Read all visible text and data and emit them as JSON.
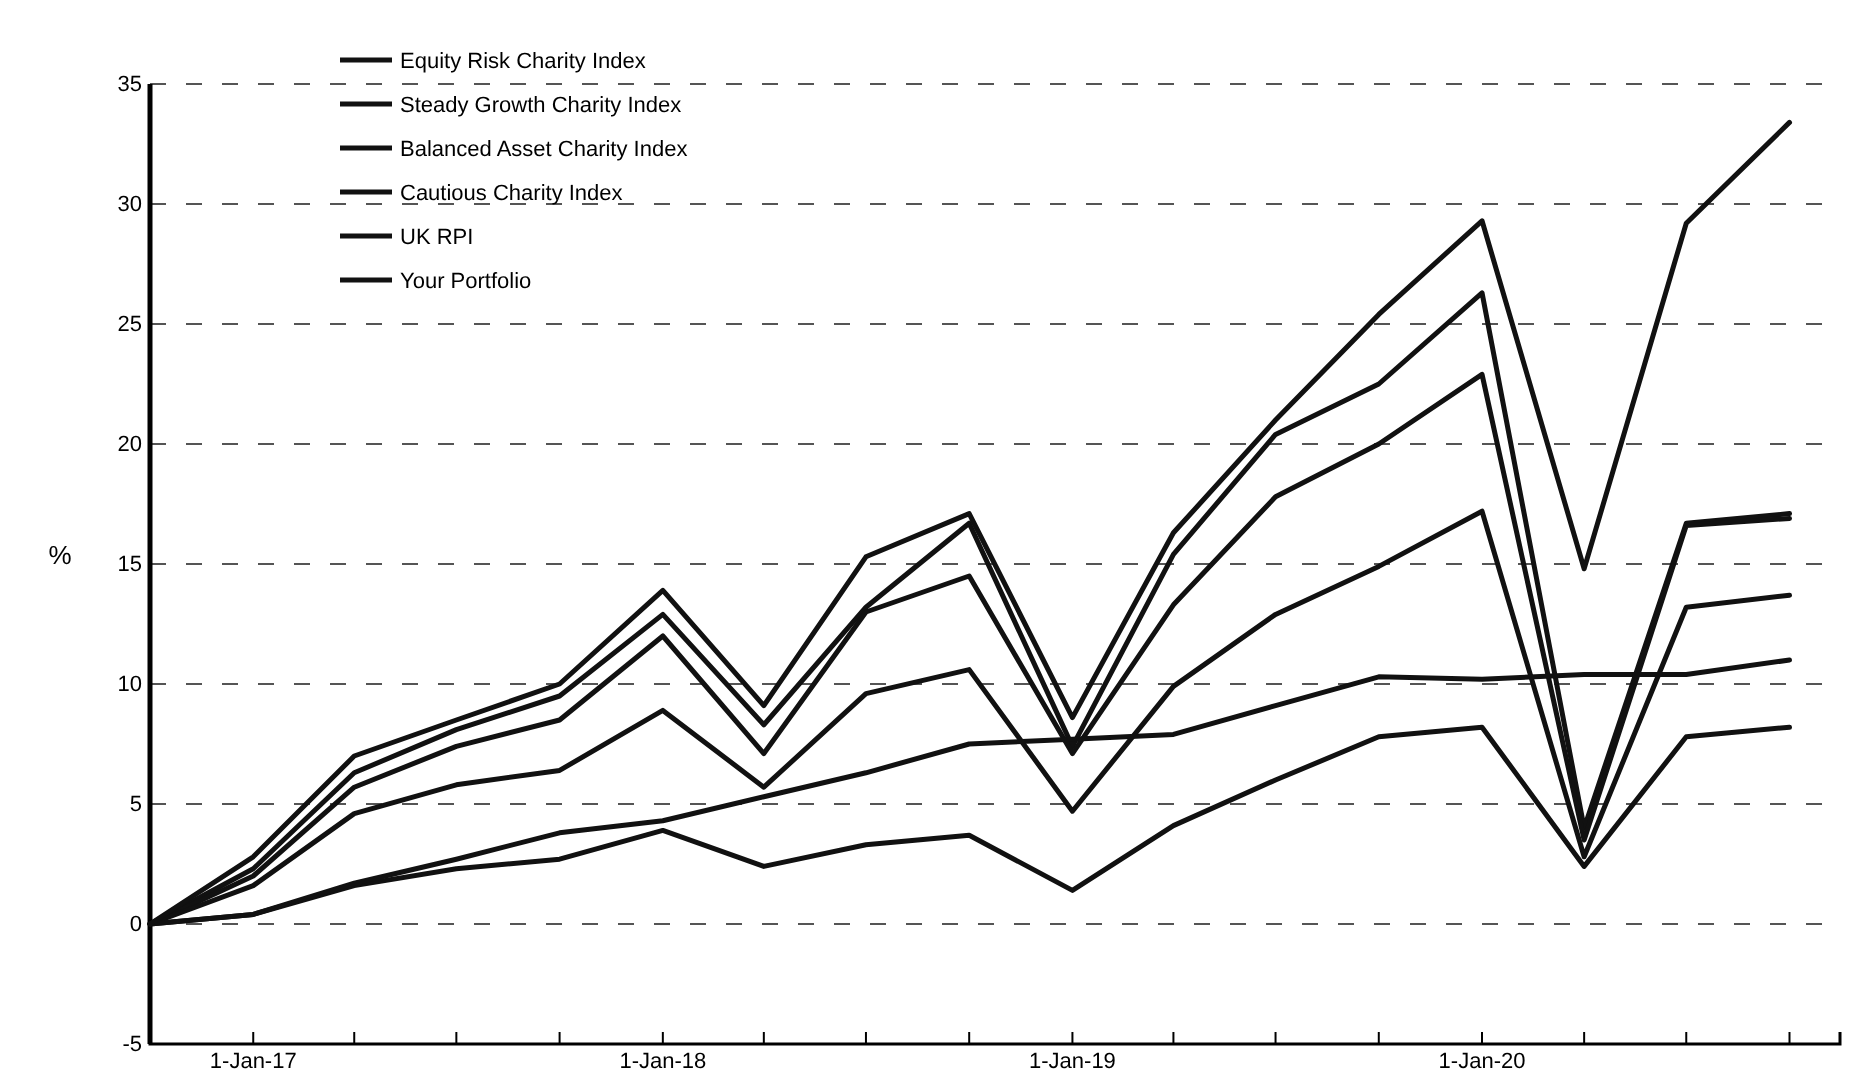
{
  "chart_data": {
    "type": "line",
    "ylabel": "%",
    "x": [
      "2016-10-01",
      "2017-01-01",
      "2017-04-01",
      "2017-07-01",
      "2017-10-01",
      "2018-01-01",
      "2018-04-01",
      "2018-07-01",
      "2018-10-01",
      "2019-01-01",
      "2019-04-01",
      "2019-07-01",
      "2019-10-01",
      "2020-01-01",
      "2020-04-01",
      "2020-07-01",
      "2020-10-01"
    ],
    "series": [
      {
        "name": "Equity Risk Charity Index",
        "color": "#111111",
        "values": [
          0,
          2.3,
          6.3,
          8.1,
          9.5,
          12.9,
          8.3,
          13.2,
          16.7,
          7.4,
          15.4,
          20.4,
          22.5,
          26.3,
          4.0,
          16.7,
          17.1
        ]
      },
      {
        "name": "Steady Growth Charity Index",
        "color": "#111111",
        "values": [
          0,
          2.0,
          5.7,
          7.4,
          8.5,
          12.0,
          7.1,
          13.0,
          14.5,
          7.1,
          13.3,
          17.8,
          20.0,
          22.9,
          3.5,
          16.6,
          16.9
        ]
      },
      {
        "name": "Balanced Asset Charity Index",
        "color": "#111111",
        "values": [
          0,
          1.6,
          4.6,
          5.8,
          6.4,
          8.9,
          5.7,
          9.6,
          10.6,
          4.7,
          9.9,
          12.9,
          14.9,
          17.2,
          2.8,
          13.2,
          13.7
        ]
      },
      {
        "name": "Cautious Charity Index",
        "color": "#111111",
        "values": [
          0,
          0.4,
          1.6,
          2.3,
          2.7,
          3.9,
          2.4,
          3.3,
          3.7,
          1.4,
          4.1,
          6.0,
          7.8,
          8.2,
          2.4,
          7.8,
          8.2
        ]
      },
      {
        "name": "UK RPI",
        "color": "#111111",
        "values": [
          0,
          0.4,
          1.7,
          2.7,
          3.8,
          4.3,
          5.3,
          6.3,
          7.5,
          7.7,
          7.9,
          9.1,
          10.3,
          10.2,
          10.4,
          10.4,
          11.0
        ]
      },
      {
        "name": "Your Portfolio",
        "color": "#111111",
        "values": [
          0,
          2.8,
          7.0,
          8.5,
          10.0,
          13.9,
          9.1,
          15.3,
          17.1,
          8.6,
          16.3,
          21.0,
          25.4,
          29.3,
          14.8,
          29.2,
          33.4
        ]
      }
    ],
    "xlim": [
      "2016-10-01",
      "2020-11-15"
    ],
    "xticks": [
      {
        "value": "2017-01-01",
        "label": "1-Jan-17"
      },
      {
        "value": "2017-04-01",
        "label": null
      },
      {
        "value": "2017-07-01",
        "label": null
      },
      {
        "value": "2017-10-01",
        "label": null
      },
      {
        "value": "2018-01-01",
        "label": "1-Jan-18"
      },
      {
        "value": "2018-04-01",
        "label": null
      },
      {
        "value": "2018-07-01",
        "label": null
      },
      {
        "value": "2018-10-01",
        "label": null
      },
      {
        "value": "2019-01-01",
        "label": "1-Jan-19"
      },
      {
        "value": "2019-04-01",
        "label": null
      },
      {
        "value": "2019-07-01",
        "label": null
      },
      {
        "value": "2019-10-01",
        "label": null
      },
      {
        "value": "2020-01-01",
        "label": "1-Jan-20"
      },
      {
        "value": "2020-04-01",
        "label": null
      },
      {
        "value": "2020-07-01",
        "label": null
      },
      {
        "value": "2020-10-01",
        "label": null
      }
    ],
    "ylim": [
      -5,
      35
    ],
    "yticks": [
      -5,
      0,
      5,
      10,
      15,
      20,
      25,
      30,
      35
    ],
    "grid": "y",
    "legend": "top left",
    "marker": "none",
    "line_style": "solid"
  }
}
